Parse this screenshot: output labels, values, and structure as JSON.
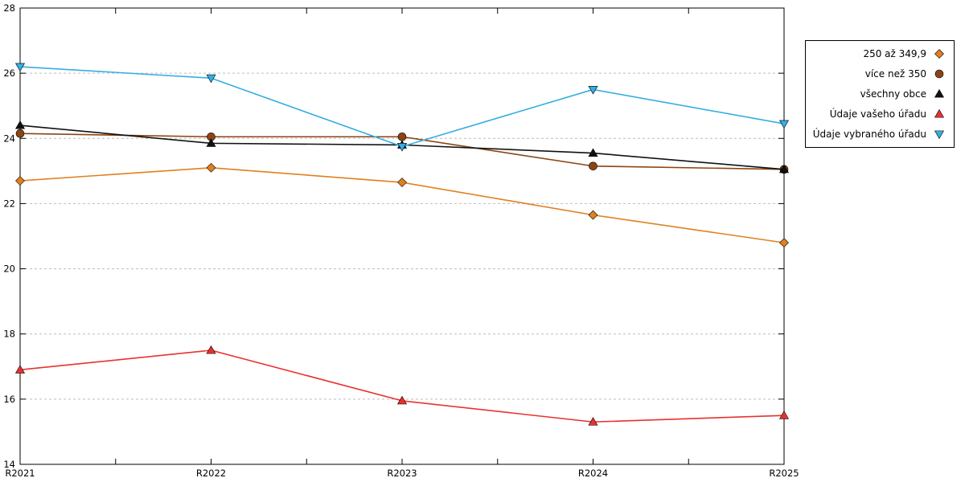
{
  "chart_data": {
    "type": "line",
    "title": "",
    "xlabel": "",
    "ylabel": "",
    "categories": [
      "R2021",
      "R2022",
      "R2023",
      "R2024",
      "R2025"
    ],
    "series": [
      {
        "name": "250 až 349,9",
        "color": "#E0801E",
        "marker": "diamond",
        "values": [
          22.7,
          23.1,
          22.65,
          21.65,
          20.8
        ]
      },
      {
        "name": "více než 350",
        "color": "#8B4513",
        "marker": "circle",
        "values": [
          24.15,
          24.05,
          24.05,
          23.15,
          23.05
        ]
      },
      {
        "name": "všechny obce",
        "color": "#111111",
        "marker": "triangle-up",
        "values": [
          24.4,
          23.85,
          23.8,
          23.55,
          23.05
        ]
      },
      {
        "name": "Údaje vašeho úřadu",
        "color": "#E8312F",
        "marker": "triangle-up",
        "values": [
          16.9,
          17.5,
          15.95,
          15.3,
          15.5
        ]
      },
      {
        "name": "Údaje vybraného úřadu",
        "color": "#35AEE2",
        "marker": "triangle-down",
        "values": [
          26.2,
          25.85,
          23.75,
          25.5,
          24.45
        ]
      }
    ],
    "ylim": [
      14,
      28
    ],
    "ytick_step": 2,
    "grid": "horizontal-dashed",
    "grid_color": "#bdbdbd",
    "legend_position": "right-outside",
    "axis_color": "#000000"
  }
}
